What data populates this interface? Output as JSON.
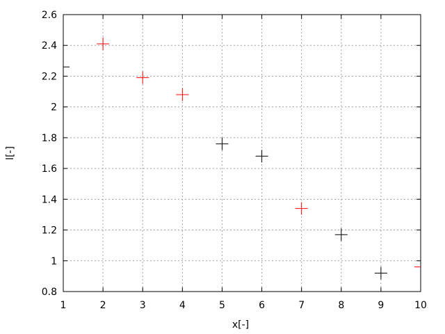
{
  "chart_data": {
    "type": "scatter",
    "title": "",
    "xlabel": "x[-]",
    "ylabel": "l[-]",
    "xlim": [
      1,
      10
    ],
    "ylim": [
      0.8,
      2.6
    ],
    "xticks": [
      "1",
      "2",
      "3",
      "4",
      "5",
      "6",
      "7",
      "8",
      "9",
      "10"
    ],
    "yticks": [
      "0.8",
      "1",
      "1.2",
      "1.4",
      "1.6",
      "1.8",
      "2",
      "2.2",
      "2.4",
      "2.6"
    ],
    "grid": true,
    "marker": "plus",
    "points": [
      {
        "x": 1,
        "y": 2.26,
        "color": "#000000"
      },
      {
        "x": 2,
        "y": 2.41,
        "color": "#ff0000"
      },
      {
        "x": 3,
        "y": 2.19,
        "color": "#ff0000"
      },
      {
        "x": 4,
        "y": 2.08,
        "color": "#ff0000"
      },
      {
        "x": 5,
        "y": 1.76,
        "color": "#000000"
      },
      {
        "x": 6,
        "y": 1.68,
        "color": "#000000"
      },
      {
        "x": 7,
        "y": 1.34,
        "color": "#ff0000"
      },
      {
        "x": 8,
        "y": 1.17,
        "color": "#000000"
      },
      {
        "x": 9,
        "y": 0.92,
        "color": "#000000"
      },
      {
        "x": 10,
        "y": 0.96,
        "color": "#ff0000"
      }
    ]
  }
}
